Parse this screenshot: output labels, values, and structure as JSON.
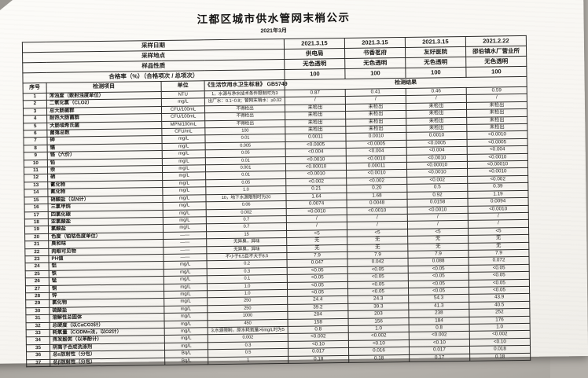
{
  "colors": {
    "ink": "#1d1c1a",
    "border": "#2b2a28",
    "paper": "#fbfaf7",
    "bg": "#b3afa9"
  },
  "page": {
    "title": "江都区城市供水管网末梢公示",
    "subtitle": "2021年3月"
  },
  "table": {
    "meta_rows": [
      {
        "label": "采样日期",
        "values": [
          "2021.3.15",
          "2021.3.15",
          "2021.3.15",
          "2021.2.22"
        ]
      },
      {
        "label": "采样地点",
        "values": [
          "供电局",
          "书香茗府",
          "友好医院",
          "邵伯镇水厂营业所"
        ]
      },
      {
        "label": "样品性质",
        "values": [
          "无色透明",
          "无色透明",
          "无色透明",
          "无色透明"
        ]
      },
      {
        "label": "合格率（%）（合格项次 / 总项次）",
        "values": [
          "100",
          "100",
          "100",
          "100"
        ]
      }
    ],
    "columns": {
      "no": "序号",
      "item": "检测项目",
      "unit": "单位",
      "standard": "《生活饮用水卫生标准》 GB5749",
      "result": "检测结果"
    },
    "rows": [
      {
        "no": "1",
        "item": "浑浊度（散射浊度单位）",
        "unit": "NTU",
        "standard": "1，水源与净水技术条件限制时为3",
        "results": [
          "0.87",
          "0.41",
          "0.46",
          "0.59"
        ]
      },
      {
        "no": "2",
        "item": "二氧化氯（CLO2）",
        "unit": "mg/L",
        "standard": "出厂水：0.1~0.8；管网末梢水：≥0.02",
        "results": [
          "/",
          "/",
          "/",
          "/"
        ]
      },
      {
        "no": "3",
        "item": "总大肠菌群",
        "unit": "CFU/100mL",
        "standard": "不得检出",
        "results": [
          "未检出",
          "未检出",
          "未检出",
          "未检出"
        ]
      },
      {
        "no": "4",
        "item": "耐热大肠菌群",
        "unit": "CFU/100mL",
        "standard": "不得检出",
        "results": [
          "未检出",
          "未检出",
          "未检出",
          "未检出"
        ]
      },
      {
        "no": "5",
        "item": "大肠埃希氏菌",
        "unit": "MPN/100mL",
        "standard": "不得检出",
        "results": [
          "未检出",
          "未检出",
          "未检出",
          "未检出"
        ]
      },
      {
        "no": "6",
        "item": "菌落总数",
        "unit": "CFU/mL",
        "standard": "100",
        "results": [
          "未检出",
          "未检出",
          "未检出",
          "未检出"
        ]
      },
      {
        "no": "7",
        "item": "砷",
        "unit": "mg/L",
        "standard": "0.01",
        "results": [
          "0.0011",
          "0.0010",
          "0.0010",
          "<0.0010"
        ]
      },
      {
        "no": "8",
        "item": "镉",
        "unit": "mg/L",
        "standard": "0.005",
        "results": [
          "<0.0005",
          "<0.0005",
          "<0.0005",
          "<0.0005"
        ]
      },
      {
        "no": "9",
        "item": "铬（六价）",
        "unit": "mg/L",
        "standard": "0.05",
        "results": [
          "<0.004",
          "<0.004",
          "<0.004",
          "<0.004"
        ]
      },
      {
        "no": "10",
        "item": "铅",
        "unit": "mg/L",
        "standard": "0.01",
        "results": [
          "<0.0010",
          "<0.0010",
          "<0.0010",
          "<0.0010"
        ]
      },
      {
        "no": "11",
        "item": "汞",
        "unit": "mg/L",
        "standard": "0.001",
        "results": [
          "<0.00010",
          "0.00011",
          "<0.00010",
          "<0.00010"
        ]
      },
      {
        "no": "12",
        "item": "硒",
        "unit": "mg/L",
        "standard": "0.01",
        "results": [
          "<0.0010",
          "<0.0010",
          "<0.0010",
          "<0.0010"
        ]
      },
      {
        "no": "13",
        "item": "氰化物",
        "unit": "mg/L",
        "standard": "0.05",
        "results": [
          "<0.002",
          "<0.002",
          "<0.002",
          "<0.002"
        ]
      },
      {
        "no": "14",
        "item": "氟化物",
        "unit": "mg/L",
        "standard": "1.0",
        "results": [
          "0.21",
          "0.20",
          "0.5",
          "0.39"
        ]
      },
      {
        "no": "15",
        "item": "硝酸盐（以N计）",
        "unit": "mg/L",
        "standard": "10，地下水源限制时为20",
        "results": [
          "1.64",
          "1.68",
          "0.92",
          "1.19"
        ]
      },
      {
        "no": "16",
        "item": "三氯甲烷",
        "unit": "mg/L",
        "standard": "0.06",
        "results": [
          "0.0074",
          "0.0048",
          "0.0158",
          "0.0094"
        ]
      },
      {
        "no": "17",
        "item": "四氯化碳",
        "unit": "mg/L",
        "standard": "0.002",
        "results": [
          "<0.0010",
          "<0.0010",
          "<0.0010",
          "<0.0010"
        ]
      },
      {
        "no": "18",
        "item": "亚氯酸盐",
        "unit": "mg/L",
        "standard": "0.7",
        "results": [
          "/",
          "/",
          "/",
          "/"
        ]
      },
      {
        "no": "19",
        "item": "氯酸盐",
        "unit": "mg/L",
        "standard": "0.7",
        "results": [
          "/",
          "/",
          "/",
          "/"
        ]
      },
      {
        "no": "20",
        "item": "色度（铂钴色度单位）",
        "unit": "——",
        "standard": "15",
        "results": [
          "<5",
          "<5",
          "<5",
          "<5"
        ]
      },
      {
        "no": "21",
        "item": "臭和味",
        "unit": "——",
        "standard": "无异臭，异味",
        "results": [
          "无",
          "无",
          "无",
          "无"
        ]
      },
      {
        "no": "22",
        "item": "肉眼可见物",
        "unit": "——",
        "standard": "无异臭，异味",
        "results": [
          "无",
          "无",
          "无",
          "无"
        ]
      },
      {
        "no": "23",
        "item": "PH值",
        "unit": "——",
        "standard": "不小于6.5且不大于8.5",
        "results": [
          "7.9",
          "7.9",
          "7.9",
          "7.9"
        ]
      },
      {
        "no": "24",
        "item": "铝",
        "unit": "mg/L",
        "standard": "0.2",
        "results": [
          "0.047",
          "0.042",
          "0.088",
          "0.072"
        ]
      },
      {
        "no": "25",
        "item": "铁",
        "unit": "mg/L",
        "standard": "0.3",
        "results": [
          "<0.05",
          "<0.05",
          "<0.05",
          "<0.05"
        ]
      },
      {
        "no": "26",
        "item": "锰",
        "unit": "mg/L",
        "standard": "0.1",
        "results": [
          "<0.05",
          "<0.05",
          "<0.05",
          "<0.05"
        ]
      },
      {
        "no": "27",
        "item": "铜",
        "unit": "mg/L",
        "standard": "1.0",
        "results": [
          "<0.05",
          "<0.05",
          "<0.05",
          "<0.05"
        ]
      },
      {
        "no": "28",
        "item": "锌",
        "unit": "mg/L",
        "standard": "1.0",
        "results": [
          "<0.05",
          "<0.05",
          "<0.05",
          "<0.05"
        ]
      },
      {
        "no": "29",
        "item": "氯化物",
        "unit": "mg/L",
        "standard": "250",
        "results": [
          "24.4",
          "24.3",
          "54.3",
          "43.9"
        ]
      },
      {
        "no": "30",
        "item": "硫酸盐",
        "unit": "mg/L",
        "standard": "250",
        "results": [
          "39.2",
          "39.3",
          "41.3",
          "40.5"
        ]
      },
      {
        "no": "31",
        "item": "溶解性总固体",
        "unit": "mg/L",
        "standard": "1000",
        "results": [
          "204",
          "203",
          "238",
          "252"
        ]
      },
      {
        "no": "32",
        "item": "总硬度（以CaCO3计）",
        "unit": "mg/L",
        "standard": "450",
        "results": [
          "158",
          "156",
          "184",
          "176"
        ]
      },
      {
        "no": "33",
        "item": "耗氧量（CODMn法，以O2计）",
        "unit": "mg/L",
        "standard": "3,水源限制，原水耗氧量>6mg/L时为5",
        "results": [
          "0.8",
          "1.0",
          "0.8",
          "1.0"
        ]
      },
      {
        "no": "34",
        "item": "挥发酚类（以苯酚计）",
        "unit": "mg/L",
        "standard": "0.002",
        "results": [
          "<0.002",
          "<0.002",
          "<0.002",
          "<0.002"
        ]
      },
      {
        "no": "35",
        "item": "阴离子合成洗涤剂",
        "unit": "mg/L",
        "standard": "0.3",
        "results": [
          "<0.10",
          "<0.10",
          "<0.10",
          "<0.10"
        ]
      },
      {
        "no": "36",
        "item": "总α放射性（分包）",
        "unit": "Bq/L",
        "standard": "0.5",
        "results": [
          "0.017",
          "0.016",
          "0.017",
          "0.018"
        ]
      },
      {
        "no": "37",
        "item": "总β放射性（分包）",
        "unit": "Bq/L",
        "standard": "1",
        "results": [
          "0.18",
          "0.18",
          "0.17",
          "0.18"
        ]
      }
    ]
  }
}
